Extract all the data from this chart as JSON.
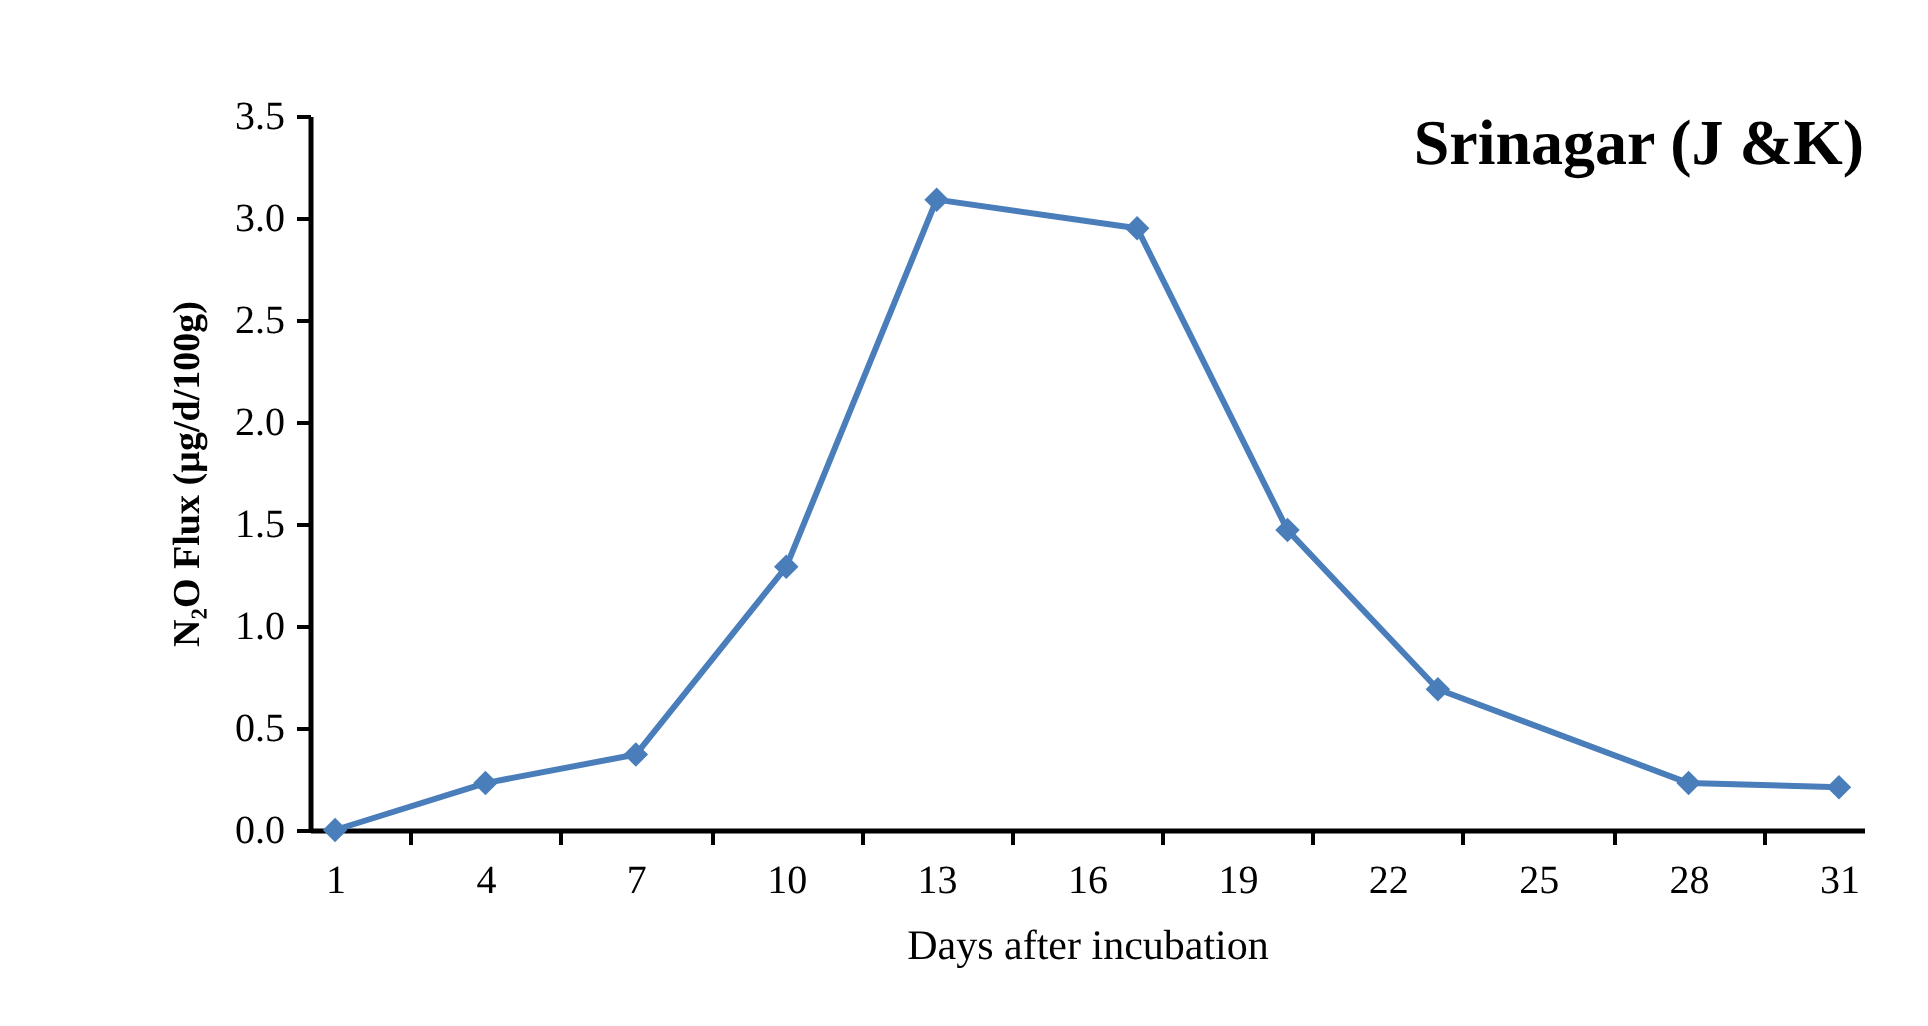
{
  "chart_data": {
    "type": "line",
    "title": "Srinagar (J &K)",
    "xlabel": "Days after incubation",
    "ylabel": "N₂O Flux (µg/d/100g)",
    "x": [
      1,
      4,
      7,
      10,
      13,
      17,
      20,
      23,
      28,
      31
    ],
    "series": [
      {
        "color": "#4a7ebb",
        "values": [
          0,
          0.23,
          0.37,
          1.29,
          3.09,
          2.95,
          1.47,
          0.69,
          0.23,
          0.21
        ]
      }
    ],
    "xlim": [
      0.5,
      31.5
    ],
    "xticks": [
      1,
      4,
      7,
      10,
      13,
      16,
      19,
      22,
      25,
      28,
      31,
      {
        "value": 2.5,
        "label": null
      },
      {
        "value": 5.5,
        "label": null
      },
      {
        "value": 8.5,
        "label": null
      },
      {
        "value": 11.5,
        "label": null
      },
      {
        "value": 14.5,
        "label": null
      },
      {
        "value": 17.5,
        "label": null
      },
      {
        "value": 20.5,
        "label": null
      },
      {
        "value": 23.5,
        "label": null
      },
      {
        "value": 26.5,
        "label": null
      },
      {
        "value": 29.5,
        "label": null
      }
    ],
    "ylim": [
      0,
      3.5
    ],
    "yticks": [
      {
        "value": 0,
        "label": "0.0"
      },
      {
        "value": 0.5,
        "label": "0.5"
      },
      {
        "value": 1,
        "label": "1.0"
      },
      {
        "value": 1.5,
        "label": "1.5"
      },
      {
        "value": 2,
        "label": "2.0"
      },
      {
        "value": 2.5,
        "label": "2.5"
      },
      {
        "value": 3,
        "label": "3.0"
      },
      {
        "value": 3.5,
        "label": "3.5"
      }
    ],
    "grid": false,
    "marker": "diamond",
    "line_style": "solid"
  }
}
